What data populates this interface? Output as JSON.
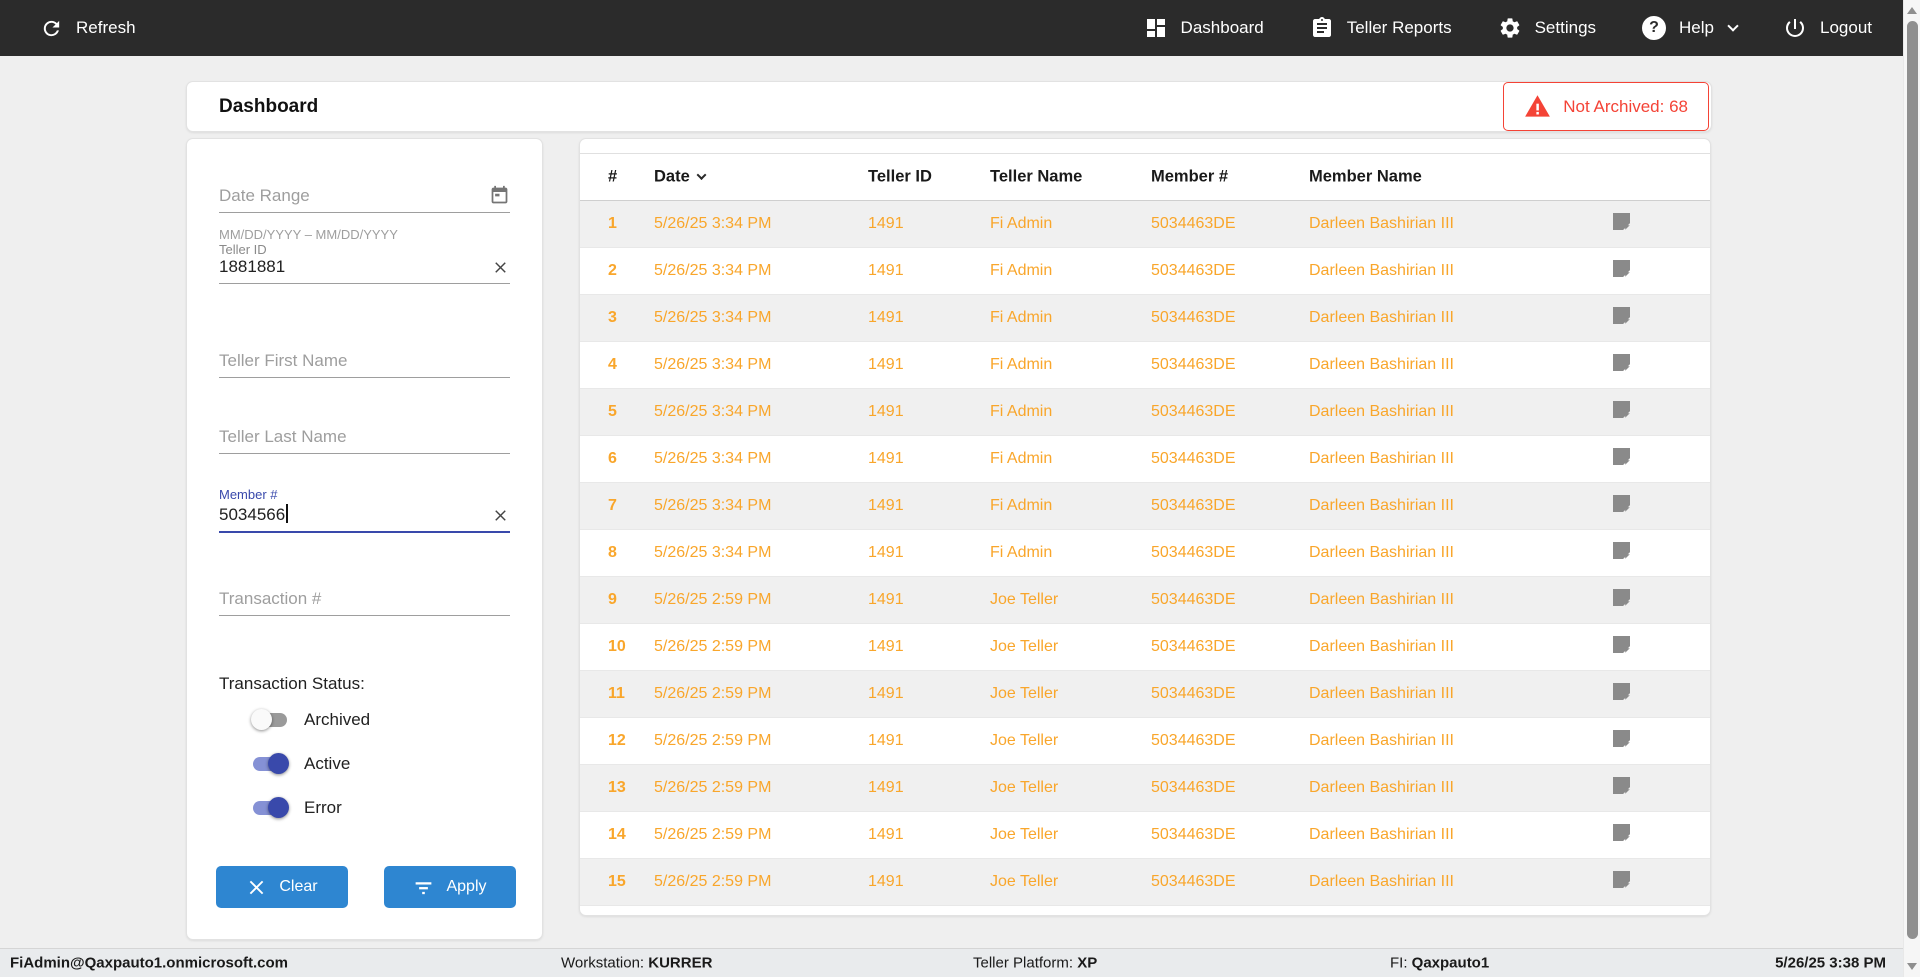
{
  "topnav": {
    "refresh_label": "Refresh",
    "items": [
      {
        "label": "Dashboard",
        "icon": "dashboard-icon"
      },
      {
        "label": "Teller Reports",
        "icon": "clipboard-icon"
      },
      {
        "label": "Settings",
        "icon": "gear-icon"
      },
      {
        "label": "Help",
        "icon": "help-icon"
      },
      {
        "label": "Logout",
        "icon": "power-icon"
      }
    ]
  },
  "header": {
    "title": "Dashboard",
    "badge_label": "Not Archived: 68"
  },
  "filters": {
    "date_range_placeholder": "Date Range",
    "date_range_helper": "MM/DD/YYYY – MM/DD/YYYY",
    "teller_id_label": "Teller ID",
    "teller_id_value": "1881881",
    "teller_first_name_placeholder": "Teller First Name",
    "teller_last_name_placeholder": "Teller Last Name",
    "member_number_label": "Member #",
    "member_number_value": "5034566",
    "transaction_number_placeholder": "Transaction #",
    "transaction_status_label": "Transaction Status:",
    "toggles": [
      {
        "label": "Archived",
        "on": false
      },
      {
        "label": "Active",
        "on": true
      },
      {
        "label": "Error",
        "on": true
      }
    ],
    "clear_label": "Clear",
    "apply_label": "Apply"
  },
  "table": {
    "columns": [
      "#",
      "Date",
      "Teller ID",
      "Teller Name",
      "Member #",
      "Member Name"
    ],
    "sorted_by": "Date",
    "sort_direction": "desc",
    "rows": [
      {
        "num": "1",
        "date": "5/26/25 3:34 PM",
        "teller_id": "1491",
        "teller_name": "Fi Admin",
        "member_number": "5034463DE",
        "member_name": "Darleen Bashirian III"
      },
      {
        "num": "2",
        "date": "5/26/25 3:34 PM",
        "teller_id": "1491",
        "teller_name": "Fi Admin",
        "member_number": "5034463DE",
        "member_name": "Darleen Bashirian III"
      },
      {
        "num": "3",
        "date": "5/26/25 3:34 PM",
        "teller_id": "1491",
        "teller_name": "Fi Admin",
        "member_number": "5034463DE",
        "member_name": "Darleen Bashirian III"
      },
      {
        "num": "4",
        "date": "5/26/25 3:34 PM",
        "teller_id": "1491",
        "teller_name": "Fi Admin",
        "member_number": "5034463DE",
        "member_name": "Darleen Bashirian III"
      },
      {
        "num": "5",
        "date": "5/26/25 3:34 PM",
        "teller_id": "1491",
        "teller_name": "Fi Admin",
        "member_number": "5034463DE",
        "member_name": "Darleen Bashirian III"
      },
      {
        "num": "6",
        "date": "5/26/25 3:34 PM",
        "teller_id": "1491",
        "teller_name": "Fi Admin",
        "member_number": "5034463DE",
        "member_name": "Darleen Bashirian III"
      },
      {
        "num": "7",
        "date": "5/26/25 3:34 PM",
        "teller_id": "1491",
        "teller_name": "Fi Admin",
        "member_number": "5034463DE",
        "member_name": "Darleen Bashirian III"
      },
      {
        "num": "8",
        "date": "5/26/25 3:34 PM",
        "teller_id": "1491",
        "teller_name": "Fi Admin",
        "member_number": "5034463DE",
        "member_name": "Darleen Bashirian III"
      },
      {
        "num": "9",
        "date": "5/26/25 2:59 PM",
        "teller_id": "1491",
        "teller_name": "Joe Teller",
        "member_number": "5034463DE",
        "member_name": "Darleen Bashirian III"
      },
      {
        "num": "10",
        "date": "5/26/25 2:59 PM",
        "teller_id": "1491",
        "teller_name": "Joe Teller",
        "member_number": "5034463DE",
        "member_name": "Darleen Bashirian III"
      },
      {
        "num": "11",
        "date": "5/26/25 2:59 PM",
        "teller_id": "1491",
        "teller_name": "Joe Teller",
        "member_number": "5034463DE",
        "member_name": "Darleen Bashirian III"
      },
      {
        "num": "12",
        "date": "5/26/25 2:59 PM",
        "teller_id": "1491",
        "teller_name": "Joe Teller",
        "member_number": "5034463DE",
        "member_name": "Darleen Bashirian III"
      },
      {
        "num": "13",
        "date": "5/26/25 2:59 PM",
        "teller_id": "1491",
        "teller_name": "Joe Teller",
        "member_number": "5034463DE",
        "member_name": "Darleen Bashirian III"
      },
      {
        "num": "14",
        "date": "5/26/25 2:59 PM",
        "teller_id": "1491",
        "teller_name": "Joe Teller",
        "member_number": "5034463DE",
        "member_name": "Darleen Bashirian III"
      },
      {
        "num": "15",
        "date": "5/26/25 2:59 PM",
        "teller_id": "1491",
        "teller_name": "Joe Teller",
        "member_number": "5034463DE",
        "member_name": "Darleen Bashirian III"
      }
    ]
  },
  "statusbar": {
    "user": "FiAdmin@Qaxpauto1.onmicrosoft.com",
    "workstation_label": "Workstation: ",
    "workstation_value": "KURRER",
    "platform_label": "Teller Platform: ",
    "platform_value": "XP",
    "fi_label": "FI: ",
    "fi_value": "Qaxpauto1",
    "datetime": "5/26/25 3:38 PM"
  },
  "colors": {
    "accent-blue": "#2E86D1",
    "indigo": "#3949AB",
    "indigo-track": "#8591D5",
    "orange": "#F9A62B",
    "alert-red": "#F44336",
    "nav-bg": "#2B2B2B"
  }
}
